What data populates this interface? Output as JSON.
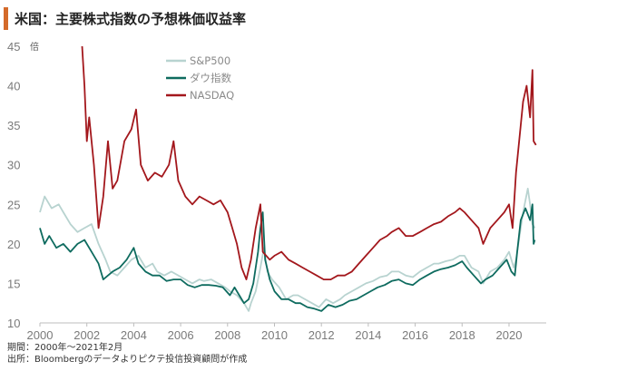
{
  "title": "米国：主要株式指数の予想株価収益率",
  "notes": {
    "period": "期間：2000年～2021年2月",
    "source": "出所：Bloombergのデータよりピクテ投信投資顧問が作成"
  },
  "colors": {
    "accent": "#d46a2a",
    "sp500": "#b8d3d0",
    "dow": "#0e6b5f",
    "nasdaq": "#a3171c"
  },
  "chart_data": {
    "type": "line",
    "title": "米国：主要株式指数の予想株価収益率",
    "ylabel": "倍",
    "ylim": [
      10,
      45
    ],
    "xlim": [
      2000,
      2021.2
    ],
    "yticks": [
      10,
      15,
      20,
      25,
      30,
      35,
      40,
      45
    ],
    "xticks": [
      2000,
      2002,
      2004,
      2006,
      2008,
      2010,
      2012,
      2014,
      2016,
      2018,
      2020
    ],
    "grid": false,
    "legend_position": "top-center",
    "series": [
      {
        "name": "S&P500",
        "color": "#b8d3d0",
        "points": [
          [
            2000.0,
            24
          ],
          [
            2000.2,
            26
          ],
          [
            2000.5,
            24.5
          ],
          [
            2000.8,
            25
          ],
          [
            2001.0,
            24
          ],
          [
            2001.3,
            22.5
          ],
          [
            2001.6,
            21.5
          ],
          [
            2001.9,
            22
          ],
          [
            2002.2,
            22.5
          ],
          [
            2002.5,
            20
          ],
          [
            2002.8,
            18
          ],
          [
            2003.0,
            16.5
          ],
          [
            2003.3,
            16
          ],
          [
            2003.6,
            17
          ],
          [
            2003.9,
            18
          ],
          [
            2004.2,
            18.5
          ],
          [
            2004.5,
            17
          ],
          [
            2004.8,
            17.5
          ],
          [
            2005.0,
            16.5
          ],
          [
            2005.3,
            16
          ],
          [
            2005.6,
            16.5
          ],
          [
            2005.9,
            16
          ],
          [
            2006.2,
            15.5
          ],
          [
            2006.5,
            15
          ],
          [
            2006.8,
            15.5
          ],
          [
            2007.0,
            15.3
          ],
          [
            2007.3,
            15.5
          ],
          [
            2007.6,
            15
          ],
          [
            2007.9,
            14.5
          ],
          [
            2008.1,
            14
          ],
          [
            2008.4,
            13.5
          ],
          [
            2008.7,
            12.5
          ],
          [
            2008.9,
            11.5
          ],
          [
            2009.0,
            12.5
          ],
          [
            2009.2,
            14
          ],
          [
            2009.4,
            17
          ],
          [
            2009.55,
            19.5
          ],
          [
            2009.7,
            16.5
          ],
          [
            2009.9,
            15.5
          ],
          [
            2010.2,
            14.5
          ],
          [
            2010.5,
            13
          ],
          [
            2010.8,
            13.5
          ],
          [
            2011.0,
            13.5
          ],
          [
            2011.3,
            13
          ],
          [
            2011.6,
            12.5
          ],
          [
            2011.9,
            12
          ],
          [
            2012.2,
            13
          ],
          [
            2012.5,
            12.5
          ],
          [
            2012.8,
            13
          ],
          [
            2013.0,
            13.5
          ],
          [
            2013.3,
            14
          ],
          [
            2013.6,
            14.5
          ],
          [
            2013.9,
            15
          ],
          [
            2014.2,
            15.3
          ],
          [
            2014.5,
            15.8
          ],
          [
            2014.8,
            16
          ],
          [
            2015.0,
            16.5
          ],
          [
            2015.3,
            16.5
          ],
          [
            2015.6,
            16
          ],
          [
            2015.9,
            15.8
          ],
          [
            2016.2,
            16.5
          ],
          [
            2016.5,
            17
          ],
          [
            2016.8,
            17.5
          ],
          [
            2017.0,
            17.5
          ],
          [
            2017.3,
            17.8
          ],
          [
            2017.6,
            18
          ],
          [
            2017.9,
            18.5
          ],
          [
            2018.1,
            18.5
          ],
          [
            2018.4,
            17
          ],
          [
            2018.7,
            16.5
          ],
          [
            2018.9,
            15
          ],
          [
            2019.2,
            16.5
          ],
          [
            2019.5,
            17
          ],
          [
            2019.8,
            18
          ],
          [
            2020.0,
            19
          ],
          [
            2020.2,
            17
          ],
          [
            2020.3,
            18
          ],
          [
            2020.45,
            21
          ],
          [
            2020.6,
            24
          ],
          [
            2020.8,
            27
          ],
          [
            2020.9,
            25
          ],
          [
            2021.0,
            22.5
          ],
          [
            2021.1,
            22
          ]
        ]
      },
      {
        "name": "ダウ指数",
        "color": "#0e6b5f",
        "points": [
          [
            2000.0,
            22
          ],
          [
            2000.2,
            20
          ],
          [
            2000.4,
            21
          ],
          [
            2000.7,
            19.5
          ],
          [
            2001.0,
            20
          ],
          [
            2001.3,
            19
          ],
          [
            2001.6,
            20
          ],
          [
            2001.9,
            20.5
          ],
          [
            2002.2,
            19
          ],
          [
            2002.5,
            17.5
          ],
          [
            2002.7,
            15.5
          ],
          [
            2002.9,
            16
          ],
          [
            2003.1,
            16.5
          ],
          [
            2003.4,
            17
          ],
          [
            2003.7,
            18
          ],
          [
            2004.0,
            19.5
          ],
          [
            2004.2,
            17.5
          ],
          [
            2004.5,
            16.5
          ],
          [
            2004.8,
            16
          ],
          [
            2005.1,
            16
          ],
          [
            2005.4,
            15.3
          ],
          [
            2005.7,
            15.5
          ],
          [
            2006.0,
            15.5
          ],
          [
            2006.3,
            14.8
          ],
          [
            2006.6,
            14.5
          ],
          [
            2006.9,
            14.8
          ],
          [
            2007.2,
            14.8
          ],
          [
            2007.5,
            14.7
          ],
          [
            2007.8,
            14.5
          ],
          [
            2008.1,
            13.5
          ],
          [
            2008.3,
            14.5
          ],
          [
            2008.5,
            13.5
          ],
          [
            2008.7,
            12.5
          ],
          [
            2008.9,
            13
          ],
          [
            2009.1,
            15
          ],
          [
            2009.3,
            19
          ],
          [
            2009.4,
            22
          ],
          [
            2009.5,
            24
          ],
          [
            2009.6,
            18
          ],
          [
            2009.8,
            15.5
          ],
          [
            2010.0,
            14
          ],
          [
            2010.3,
            13
          ],
          [
            2010.6,
            13
          ],
          [
            2010.9,
            12.5
          ],
          [
            2011.1,
            12.5
          ],
          [
            2011.4,
            12
          ],
          [
            2011.7,
            11.8
          ],
          [
            2012.0,
            11.5
          ],
          [
            2012.3,
            12.3
          ],
          [
            2012.6,
            12
          ],
          [
            2012.9,
            12.3
          ],
          [
            2013.2,
            12.8
          ],
          [
            2013.5,
            13
          ],
          [
            2013.8,
            13.5
          ],
          [
            2014.1,
            14
          ],
          [
            2014.4,
            14.5
          ],
          [
            2014.7,
            14.8
          ],
          [
            2015.0,
            15.3
          ],
          [
            2015.3,
            15.5
          ],
          [
            2015.6,
            15
          ],
          [
            2015.9,
            14.8
          ],
          [
            2016.2,
            15.5
          ],
          [
            2016.5,
            16
          ],
          [
            2016.8,
            16.5
          ],
          [
            2017.1,
            16.8
          ],
          [
            2017.4,
            17
          ],
          [
            2017.7,
            17.3
          ],
          [
            2018.0,
            17.8
          ],
          [
            2018.2,
            17
          ],
          [
            2018.5,
            16
          ],
          [
            2018.8,
            15
          ],
          [
            2019.0,
            15.5
          ],
          [
            2019.3,
            16
          ],
          [
            2019.6,
            17
          ],
          [
            2019.9,
            18
          ],
          [
            2020.1,
            16.5
          ],
          [
            2020.25,
            16
          ],
          [
            2020.35,
            19
          ],
          [
            2020.5,
            23
          ],
          [
            2020.7,
            24.5
          ],
          [
            2020.9,
            23
          ],
          [
            2021.0,
            25
          ],
          [
            2021.05,
            20
          ],
          [
            2021.1,
            20.5
          ]
        ]
      },
      {
        "name": "NASDAQ",
        "color": "#a3171c",
        "points": [
          [
            2001.8,
            45
          ],
          [
            2001.9,
            40
          ],
          [
            2002.0,
            33
          ],
          [
            2002.1,
            36
          ],
          [
            2002.3,
            30
          ],
          [
            2002.5,
            22
          ],
          [
            2002.7,
            26
          ],
          [
            2002.9,
            33
          ],
          [
            2003.1,
            27
          ],
          [
            2003.3,
            28
          ],
          [
            2003.6,
            33
          ],
          [
            2003.9,
            34.5
          ],
          [
            2004.1,
            37
          ],
          [
            2004.3,
            30
          ],
          [
            2004.6,
            28
          ],
          [
            2004.9,
            29
          ],
          [
            2005.2,
            28.5
          ],
          [
            2005.5,
            30
          ],
          [
            2005.7,
            33
          ],
          [
            2005.9,
            28
          ],
          [
            2006.2,
            26
          ],
          [
            2006.5,
            25
          ],
          [
            2006.8,
            26
          ],
          [
            2007.1,
            25.5
          ],
          [
            2007.4,
            25
          ],
          [
            2007.7,
            25.5
          ],
          [
            2008.0,
            24
          ],
          [
            2008.2,
            22
          ],
          [
            2008.4,
            20
          ],
          [
            2008.6,
            17
          ],
          [
            2008.8,
            15.5
          ],
          [
            2009.0,
            18
          ],
          [
            2009.2,
            22
          ],
          [
            2009.4,
            25
          ],
          [
            2009.5,
            19
          ],
          [
            2009.8,
            18
          ],
          [
            2010.0,
            18.5
          ],
          [
            2010.3,
            19
          ],
          [
            2010.6,
            18
          ],
          [
            2010.9,
            17.5
          ],
          [
            2011.2,
            17
          ],
          [
            2011.5,
            16.5
          ],
          [
            2011.8,
            16
          ],
          [
            2012.1,
            15.5
          ],
          [
            2012.4,
            15.5
          ],
          [
            2012.7,
            16
          ],
          [
            2013.0,
            16
          ],
          [
            2013.3,
            16.5
          ],
          [
            2013.6,
            17.5
          ],
          [
            2013.9,
            18.5
          ],
          [
            2014.2,
            19.5
          ],
          [
            2014.5,
            20.5
          ],
          [
            2014.8,
            21
          ],
          [
            2015.0,
            21.5
          ],
          [
            2015.3,
            22
          ],
          [
            2015.6,
            21
          ],
          [
            2015.9,
            21
          ],
          [
            2016.2,
            21.5
          ],
          [
            2016.5,
            22
          ],
          [
            2016.8,
            22.5
          ],
          [
            2017.1,
            22.8
          ],
          [
            2017.4,
            23.5
          ],
          [
            2017.7,
            24
          ],
          [
            2017.9,
            24.5
          ],
          [
            2018.1,
            24
          ],
          [
            2018.4,
            23
          ],
          [
            2018.7,
            22
          ],
          [
            2018.9,
            20
          ],
          [
            2019.2,
            22
          ],
          [
            2019.5,
            23
          ],
          [
            2019.8,
            24
          ],
          [
            2020.0,
            25
          ],
          [
            2020.15,
            22
          ],
          [
            2020.3,
            29
          ],
          [
            2020.5,
            35
          ],
          [
            2020.6,
            38
          ],
          [
            2020.75,
            40
          ],
          [
            2020.9,
            36
          ],
          [
            2021.0,
            42
          ],
          [
            2021.05,
            33
          ],
          [
            2021.15,
            32.5
          ]
        ]
      }
    ]
  }
}
